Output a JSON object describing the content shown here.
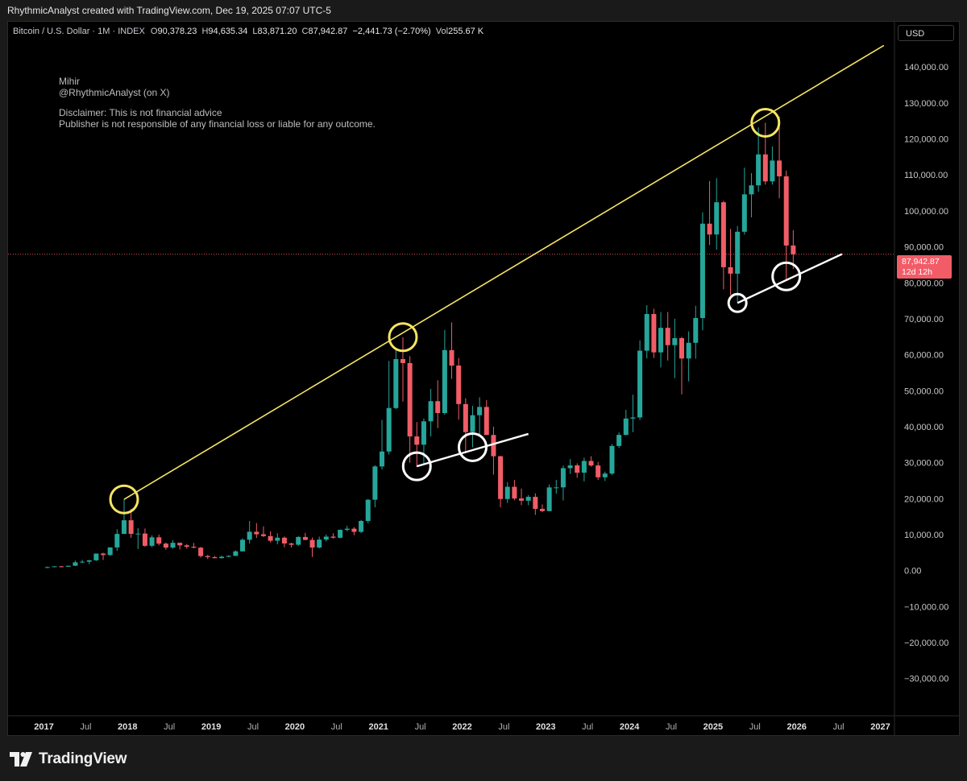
{
  "header": {
    "credit": "RhythmicAnalyst created with TradingView.com, Dec 19, 2025 07:07 UTC-5"
  },
  "legend": {
    "symbol": "Bitcoin / U.S. Dollar · 1M · INDEX",
    "open_label": "O",
    "open": "90,378.23",
    "high_label": "H",
    "high": "94,635.34",
    "low_label": "L",
    "low": "83,871.20",
    "close_label": "C",
    "close": "87,942.87",
    "change": "−2,441.73 (−2.70%)",
    "vol_label": "Vol",
    "vol": "255.67 K"
  },
  "note": {
    "line1": "Mihir",
    "line2": "@RhythmicAnalyst (on X)",
    "line3": "Disclaimer: This is not financial advice",
    "line4": "Publisher is not responsible of any financial loss or liable for any outcome."
  },
  "currency": "USD",
  "price_tag": {
    "price": "87,942.87",
    "countdown": "12d 12h"
  },
  "branding": {
    "name": "TradingView"
  },
  "colors": {
    "up": "#26a69a",
    "down": "#f05d67",
    "trend_upper": "#f5e462",
    "trend_lower": "#ffffff",
    "background": "#000000"
  },
  "chart_data": {
    "type": "candlestick",
    "x_ticks": [
      "2017",
      "Jul",
      "2018",
      "Jul",
      "2019",
      "Jul",
      "2020",
      "Jul",
      "2021",
      "Jul",
      "2022",
      "Jul",
      "2023",
      "Jul",
      "2024",
      "Jul",
      "2025",
      "Jul",
      "2026",
      "Jul",
      "2027"
    ],
    "y_ticks": [
      "140,000.00",
      "130,000.00",
      "120,000.00",
      "110,000.00",
      "100,000.00",
      "90,000.00",
      "80,000.00",
      "70,000.00",
      "60,000.00",
      "50,000.00",
      "40,000.00",
      "30,000.00",
      "20,000.00",
      "10,000.00",
      "0.00",
      "−10,000.00",
      "−20,000.00",
      "−30,000.00"
    ],
    "ylim": [
      -37000,
      149000
    ],
    "last_price": 87942.87,
    "candles": [
      {
        "t": "2017-01",
        "o": 960,
        "h": 1150,
        "l": 750,
        "c": 965
      },
      {
        "t": "2017-02",
        "o": 965,
        "h": 1200,
        "l": 920,
        "c": 1190
      },
      {
        "t": "2017-03",
        "o": 1190,
        "h": 1300,
        "l": 890,
        "c": 1080
      },
      {
        "t": "2017-04",
        "o": 1080,
        "h": 1350,
        "l": 1060,
        "c": 1350
      },
      {
        "t": "2017-05",
        "o": 1350,
        "h": 2800,
        "l": 1340,
        "c": 2300
      },
      {
        "t": "2017-06",
        "o": 2300,
        "h": 3000,
        "l": 2080,
        "c": 2480
      },
      {
        "t": "2017-07",
        "o": 2480,
        "h": 2950,
        "l": 1800,
        "c": 2870
      },
      {
        "t": "2017-08",
        "o": 2870,
        "h": 4750,
        "l": 2670,
        "c": 4740
      },
      {
        "t": "2017-09",
        "o": 4740,
        "h": 4980,
        "l": 2950,
        "c": 4340
      },
      {
        "t": "2017-10",
        "o": 4340,
        "h": 6470,
        "l": 4100,
        "c": 6450
      },
      {
        "t": "2017-11",
        "o": 6450,
        "h": 11500,
        "l": 5500,
        "c": 10200
      },
      {
        "t": "2017-12",
        "o": 10200,
        "h": 19800,
        "l": 10700,
        "c": 14000
      },
      {
        "t": "2018-01",
        "o": 14000,
        "h": 17200,
        "l": 9100,
        "c": 10200
      },
      {
        "t": "2018-02",
        "o": 10200,
        "h": 11800,
        "l": 6000,
        "c": 10300
      },
      {
        "t": "2018-03",
        "o": 10300,
        "h": 11700,
        "l": 6600,
        "c": 6900
      },
      {
        "t": "2018-04",
        "o": 6900,
        "h": 9800,
        "l": 6500,
        "c": 9250
      },
      {
        "t": "2018-05",
        "o": 9250,
        "h": 9990,
        "l": 7000,
        "c": 7500
      },
      {
        "t": "2018-06",
        "o": 7500,
        "h": 7800,
        "l": 5800,
        "c": 6400
      },
      {
        "t": "2018-07",
        "o": 6400,
        "h": 8500,
        "l": 6100,
        "c": 7730
      },
      {
        "t": "2018-08",
        "o": 7730,
        "h": 7750,
        "l": 5900,
        "c": 7030
      },
      {
        "t": "2018-09",
        "o": 7030,
        "h": 7400,
        "l": 6100,
        "c": 6630
      },
      {
        "t": "2018-10",
        "o": 6630,
        "h": 7680,
        "l": 6200,
        "c": 6370
      },
      {
        "t": "2018-11",
        "o": 6370,
        "h": 6600,
        "l": 3600,
        "c": 4040
      },
      {
        "t": "2018-12",
        "o": 4040,
        "h": 4400,
        "l": 3200,
        "c": 3740
      },
      {
        "t": "2019-01",
        "o": 3740,
        "h": 4100,
        "l": 3400,
        "c": 3460
      },
      {
        "t": "2019-02",
        "o": 3460,
        "h": 4200,
        "l": 3390,
        "c": 3850
      },
      {
        "t": "2019-03",
        "o": 3850,
        "h": 4200,
        "l": 3700,
        "c": 4100
      },
      {
        "t": "2019-04",
        "o": 4100,
        "h": 5640,
        "l": 4050,
        "c": 5350
      },
      {
        "t": "2019-05",
        "o": 5350,
        "h": 9000,
        "l": 5300,
        "c": 8570
      },
      {
        "t": "2019-06",
        "o": 8570,
        "h": 13800,
        "l": 7500,
        "c": 10800
      },
      {
        "t": "2019-07",
        "o": 10800,
        "h": 13200,
        "l": 9100,
        "c": 10100
      },
      {
        "t": "2019-08",
        "o": 10100,
        "h": 12300,
        "l": 9350,
        "c": 9600
      },
      {
        "t": "2019-09",
        "o": 9600,
        "h": 10950,
        "l": 7800,
        "c": 8300
      },
      {
        "t": "2019-10",
        "o": 8300,
        "h": 10400,
        "l": 7300,
        "c": 9150
      },
      {
        "t": "2019-11",
        "o": 9150,
        "h": 9500,
        "l": 6500,
        "c": 7550
      },
      {
        "t": "2019-12",
        "o": 7550,
        "h": 7750,
        "l": 6400,
        "c": 7190
      },
      {
        "t": "2020-01",
        "o": 7190,
        "h": 9550,
        "l": 6850,
        "c": 9350
      },
      {
        "t": "2020-02",
        "o": 9350,
        "h": 10500,
        "l": 8450,
        "c": 8530
      },
      {
        "t": "2020-03",
        "o": 8530,
        "h": 9200,
        "l": 3800,
        "c": 6420
      },
      {
        "t": "2020-04",
        "o": 6420,
        "h": 9450,
        "l": 6150,
        "c": 8620
      },
      {
        "t": "2020-05",
        "o": 8620,
        "h": 10070,
        "l": 8100,
        "c": 9450
      },
      {
        "t": "2020-06",
        "o": 9450,
        "h": 10400,
        "l": 8900,
        "c": 9140
      },
      {
        "t": "2020-07",
        "o": 9140,
        "h": 11450,
        "l": 8950,
        "c": 11340
      },
      {
        "t": "2020-08",
        "o": 11340,
        "h": 12480,
        "l": 10900,
        "c": 11650
      },
      {
        "t": "2020-09",
        "o": 11650,
        "h": 12100,
        "l": 9850,
        "c": 10780
      },
      {
        "t": "2020-10",
        "o": 10780,
        "h": 14100,
        "l": 10400,
        "c": 13800
      },
      {
        "t": "2020-11",
        "o": 13800,
        "h": 19900,
        "l": 13200,
        "c": 19700
      },
      {
        "t": "2020-12",
        "o": 19700,
        "h": 29300,
        "l": 17600,
        "c": 28950
      },
      {
        "t": "2021-01",
        "o": 28950,
        "h": 41900,
        "l": 28100,
        "c": 33100
      },
      {
        "t": "2021-02",
        "o": 33100,
        "h": 58300,
        "l": 32300,
        "c": 45200
      },
      {
        "t": "2021-03",
        "o": 45200,
        "h": 61700,
        "l": 44900,
        "c": 58800
      },
      {
        "t": "2021-04",
        "o": 58800,
        "h": 64900,
        "l": 47000,
        "c": 57700
      },
      {
        "t": "2021-05",
        "o": 57700,
        "h": 59600,
        "l": 30000,
        "c": 37300
      },
      {
        "t": "2021-06",
        "o": 37300,
        "h": 41300,
        "l": 28800,
        "c": 35000
      },
      {
        "t": "2021-07",
        "o": 35000,
        "h": 42300,
        "l": 29300,
        "c": 41500
      },
      {
        "t": "2021-08",
        "o": 41500,
        "h": 50500,
        "l": 37300,
        "c": 47100
      },
      {
        "t": "2021-09",
        "o": 47100,
        "h": 52900,
        "l": 39600,
        "c": 43800
      },
      {
        "t": "2021-10",
        "o": 43800,
        "h": 66900,
        "l": 43300,
        "c": 61300
      },
      {
        "t": "2021-11",
        "o": 61300,
        "h": 69000,
        "l": 53300,
        "c": 57000
      },
      {
        "t": "2021-12",
        "o": 57000,
        "h": 59100,
        "l": 42000,
        "c": 46300
      },
      {
        "t": "2022-01",
        "o": 46300,
        "h": 47900,
        "l": 33000,
        "c": 38500
      },
      {
        "t": "2022-02",
        "o": 38500,
        "h": 45800,
        "l": 34300,
        "c": 43200
      },
      {
        "t": "2022-03",
        "o": 43200,
        "h": 48200,
        "l": 37200,
        "c": 45500
      },
      {
        "t": "2022-04",
        "o": 45500,
        "h": 47400,
        "l": 37700,
        "c": 37700
      },
      {
        "t": "2022-05",
        "o": 37700,
        "h": 40000,
        "l": 26700,
        "c": 31800
      },
      {
        "t": "2022-06",
        "o": 31800,
        "h": 31900,
        "l": 17600,
        "c": 19900
      },
      {
        "t": "2022-07",
        "o": 19900,
        "h": 24600,
        "l": 18800,
        "c": 23300
      },
      {
        "t": "2022-08",
        "o": 23300,
        "h": 25200,
        "l": 19600,
        "c": 20050
      },
      {
        "t": "2022-09",
        "o": 20050,
        "h": 22800,
        "l": 18200,
        "c": 19430
      },
      {
        "t": "2022-10",
        "o": 19430,
        "h": 21000,
        "l": 18200,
        "c": 20500
      },
      {
        "t": "2022-11",
        "o": 20500,
        "h": 21500,
        "l": 15500,
        "c": 17170
      },
      {
        "t": "2022-12",
        "o": 17170,
        "h": 18400,
        "l": 16300,
        "c": 16540
      },
      {
        "t": "2023-01",
        "o": 16540,
        "h": 23950,
        "l": 16500,
        "c": 23130
      },
      {
        "t": "2023-02",
        "o": 23130,
        "h": 25200,
        "l": 21400,
        "c": 23140
      },
      {
        "t": "2023-03",
        "o": 23140,
        "h": 29200,
        "l": 19500,
        "c": 28480
      },
      {
        "t": "2023-04",
        "o": 28480,
        "h": 31000,
        "l": 26900,
        "c": 29250
      },
      {
        "t": "2023-05",
        "o": 29250,
        "h": 29800,
        "l": 25800,
        "c": 27220
      },
      {
        "t": "2023-06",
        "o": 27220,
        "h": 31400,
        "l": 24800,
        "c": 30480
      },
      {
        "t": "2023-07",
        "o": 30480,
        "h": 31800,
        "l": 28900,
        "c": 29230
      },
      {
        "t": "2023-08",
        "o": 29230,
        "h": 30200,
        "l": 25200,
        "c": 25940
      },
      {
        "t": "2023-09",
        "o": 25940,
        "h": 27500,
        "l": 24900,
        "c": 26970
      },
      {
        "t": "2023-10",
        "o": 26970,
        "h": 35200,
        "l": 26600,
        "c": 34650
      },
      {
        "t": "2023-11",
        "o": 34650,
        "h": 38400,
        "l": 34100,
        "c": 37720
      },
      {
        "t": "2023-12",
        "o": 37720,
        "h": 44700,
        "l": 37600,
        "c": 42280
      },
      {
        "t": "2024-01",
        "o": 42280,
        "h": 48900,
        "l": 38500,
        "c": 42580
      },
      {
        "t": "2024-02",
        "o": 42580,
        "h": 64000,
        "l": 41900,
        "c": 61130
      },
      {
        "t": "2024-03",
        "o": 61130,
        "h": 73800,
        "l": 59000,
        "c": 71330
      },
      {
        "t": "2024-04",
        "o": 71330,
        "h": 72800,
        "l": 59100,
        "c": 60670
      },
      {
        "t": "2024-05",
        "o": 60670,
        "h": 71900,
        "l": 56500,
        "c": 67490
      },
      {
        "t": "2024-06",
        "o": 67490,
        "h": 71900,
        "l": 58400,
        "c": 62680
      },
      {
        "t": "2024-07",
        "o": 62680,
        "h": 70000,
        "l": 53500,
        "c": 64620
      },
      {
        "t": "2024-08",
        "o": 64620,
        "h": 65000,
        "l": 49000,
        "c": 58970
      },
      {
        "t": "2024-09",
        "o": 58970,
        "h": 66500,
        "l": 52600,
        "c": 63330
      },
      {
        "t": "2024-10",
        "o": 63330,
        "h": 73600,
        "l": 58900,
        "c": 70220
      },
      {
        "t": "2024-11",
        "o": 70220,
        "h": 99600,
        "l": 66800,
        "c": 96450
      },
      {
        "t": "2024-12",
        "o": 96450,
        "h": 108300,
        "l": 90500,
        "c": 93430
      },
      {
        "t": "2025-01",
        "o": 93430,
        "h": 109100,
        "l": 89200,
        "c": 102400
      },
      {
        "t": "2025-02",
        "o": 102400,
        "h": 102800,
        "l": 78200,
        "c": 84350
      },
      {
        "t": "2025-03",
        "o": 84350,
        "h": 95000,
        "l": 76600,
        "c": 82550
      },
      {
        "t": "2025-04",
        "o": 82550,
        "h": 95800,
        "l": 74400,
        "c": 94200
      },
      {
        "t": "2025-05",
        "o": 94200,
        "h": 112000,
        "l": 93400,
        "c": 104600
      },
      {
        "t": "2025-06",
        "o": 104600,
        "h": 110500,
        "l": 98200,
        "c": 107100
      },
      {
        "t": "2025-07",
        "o": 107100,
        "h": 123200,
        "l": 105300,
        "c": 115700
      },
      {
        "t": "2025-08",
        "o": 115700,
        "h": 124500,
        "l": 107300,
        "c": 108200
      },
      {
        "t": "2025-09",
        "o": 108200,
        "h": 117900,
        "l": 107300,
        "c": 114000
      },
      {
        "t": "2025-10",
        "o": 114000,
        "h": 126200,
        "l": 103500,
        "c": 109600
      },
      {
        "t": "2025-11",
        "o": 109600,
        "h": 111200,
        "l": 80600,
        "c": 90380
      },
      {
        "t": "2025-12",
        "o": 90380,
        "h": 94635.34,
        "l": 83871.2,
        "c": 87942.87
      }
    ],
    "trendlines": [
      {
        "name": "upper",
        "from": {
          "t": "2017-12",
          "y": 19800
        },
        "to": {
          "t": "2027-01",
          "y": 146000
        }
      },
      {
        "name": "lower-2021",
        "from": {
          "t": "2021-06",
          "y": 29000
        },
        "to": {
          "t": "2022-10",
          "y": 38000
        }
      },
      {
        "name": "lower-2025",
        "from": {
          "t": "2025-04",
          "y": 74400
        },
        "to": {
          "t": "2026-07",
          "y": 88000
        }
      }
    ],
    "circles": [
      {
        "color": "yellow",
        "t": "2017-12",
        "y": 19800,
        "size": "medium"
      },
      {
        "color": "yellow",
        "t": "2021-04",
        "y": 64900,
        "size": "medium"
      },
      {
        "color": "yellow",
        "t": "2025-08",
        "y": 124500,
        "size": "medium"
      },
      {
        "color": "white",
        "t": "2021-06",
        "y": 29000,
        "size": "medium"
      },
      {
        "color": "white",
        "t": "2022-02",
        "y": 34300,
        "size": "medium"
      },
      {
        "color": "white",
        "t": "2025-04",
        "y": 74400,
        "size": "small"
      },
      {
        "color": "white",
        "t": "2025-11",
        "y": 81800,
        "size": "medium"
      }
    ]
  }
}
